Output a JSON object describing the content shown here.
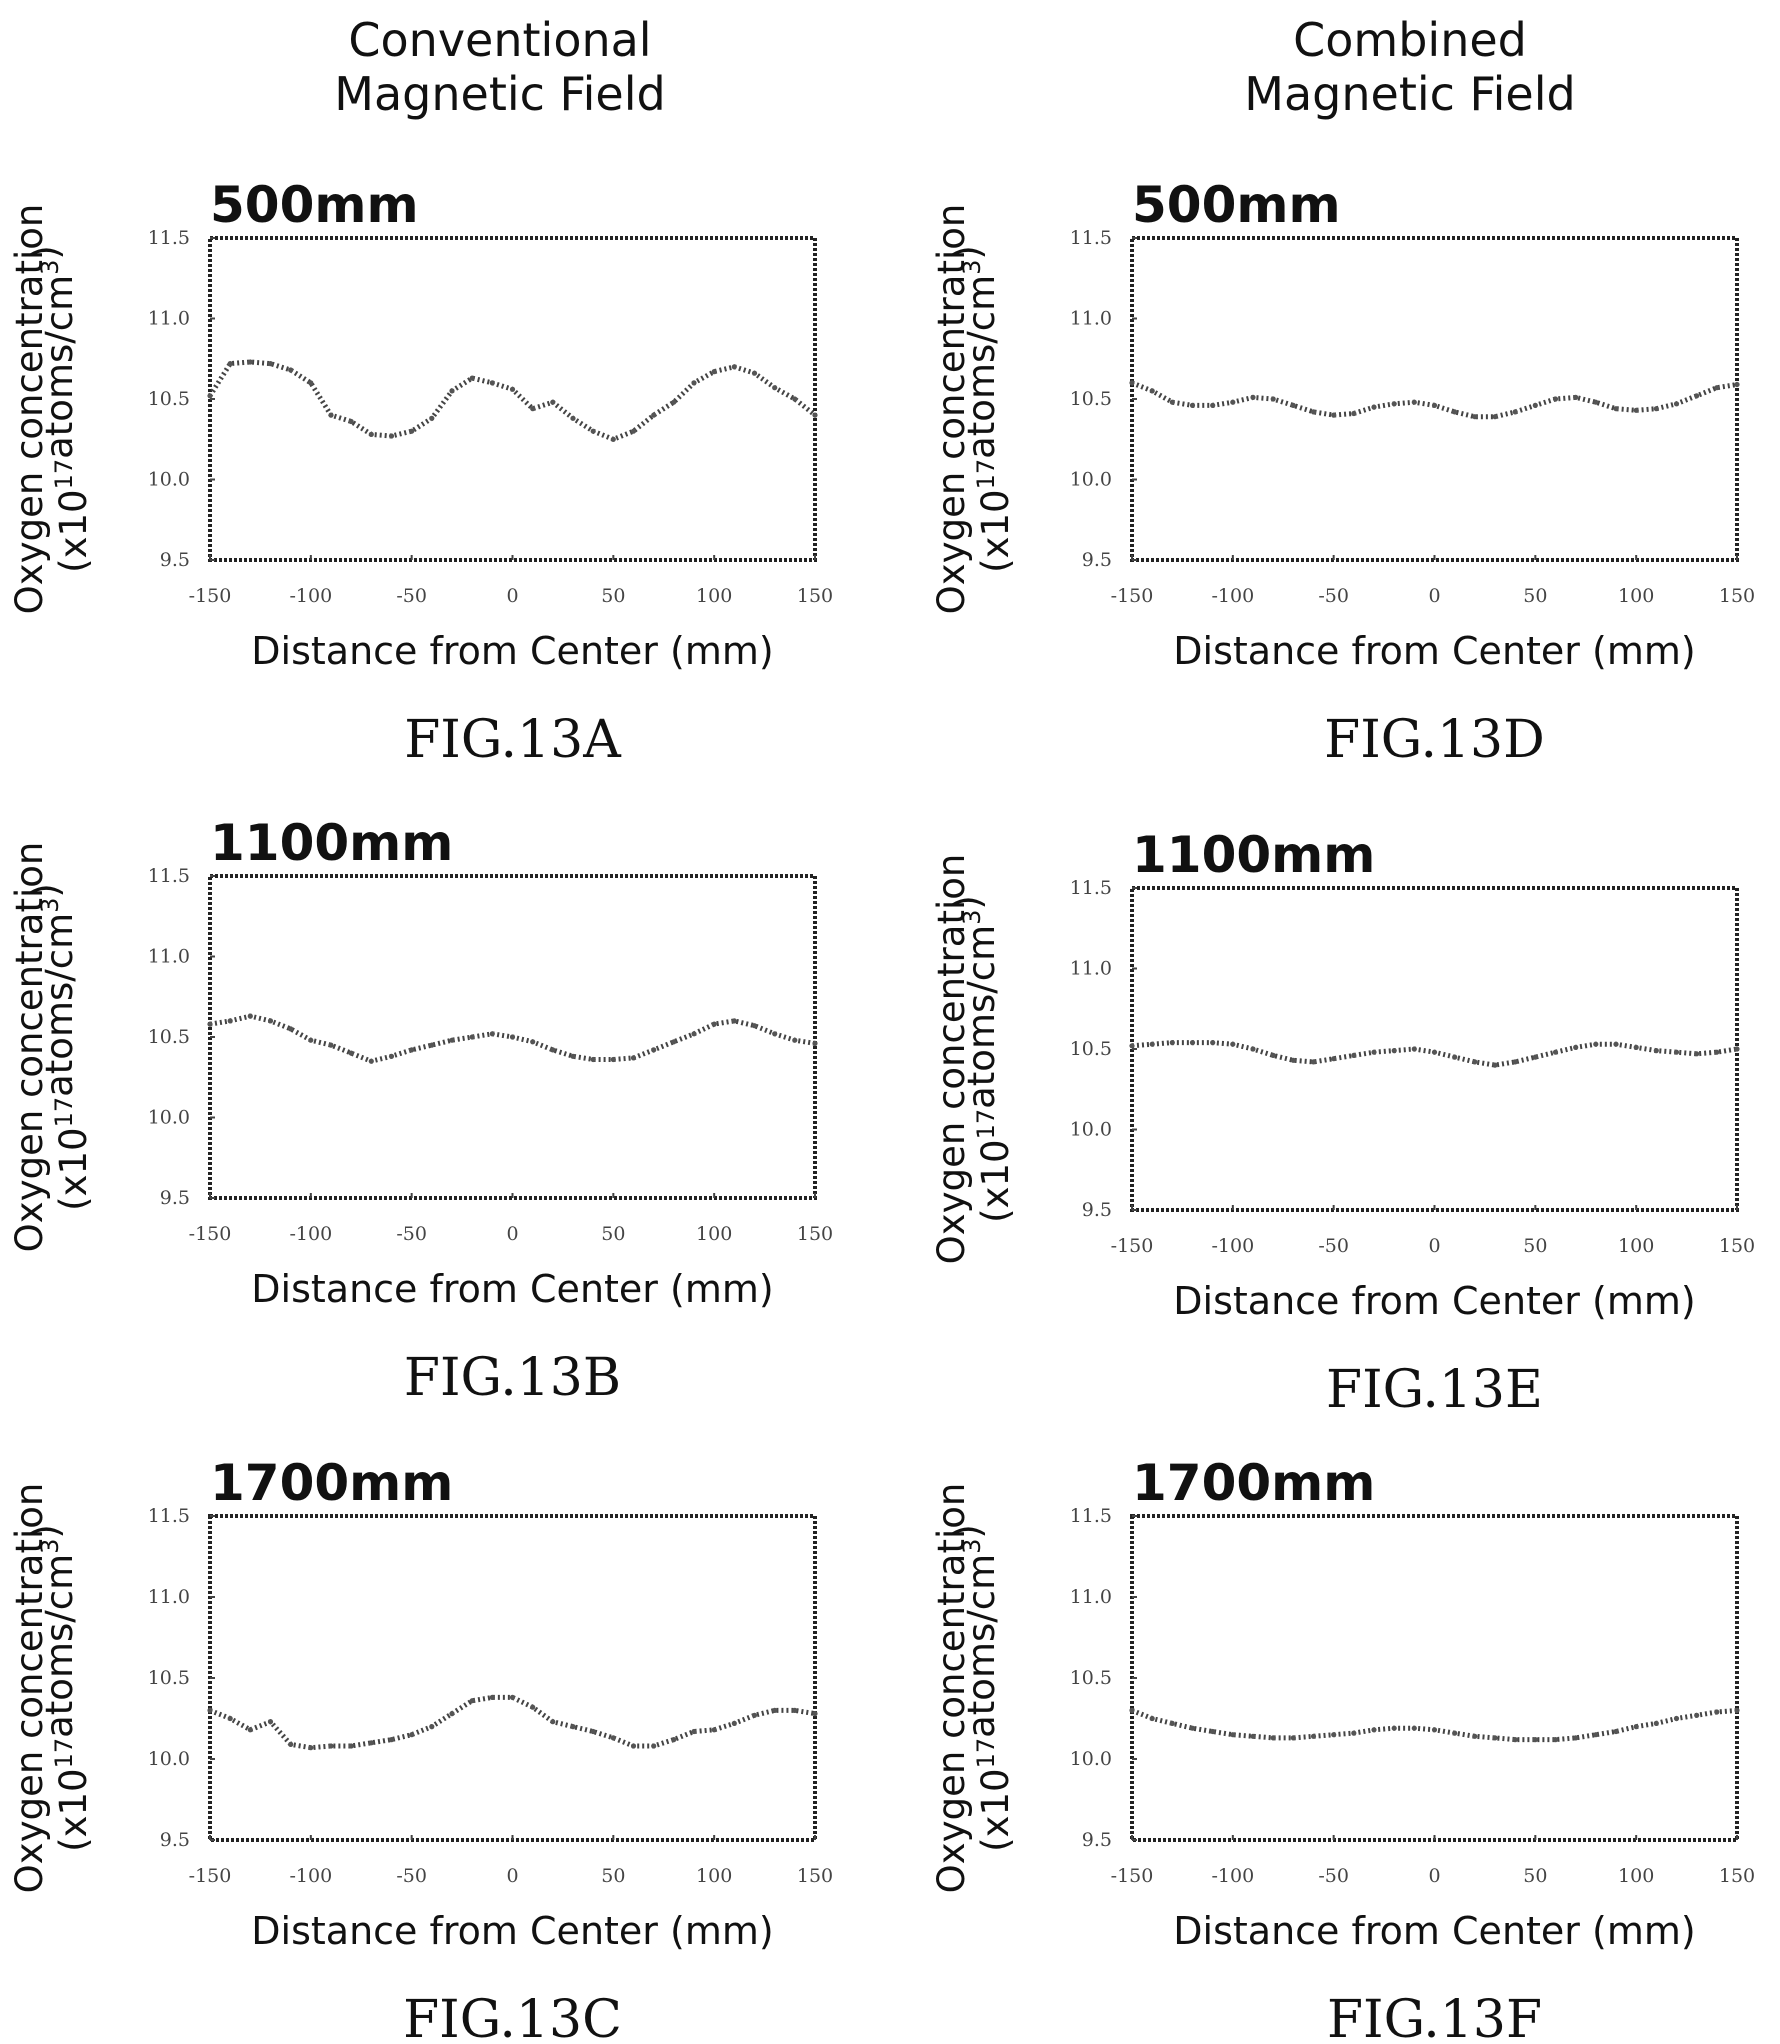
{
  "column_headers": [
    {
      "line1": "Conventional",
      "line2": "Magnetic Field"
    },
    {
      "line1": "Combined",
      "line2": "Magnetic Field"
    }
  ],
  "chart_data": [
    {
      "type": "line",
      "figure": "FIG.13A",
      "title": "500mm",
      "xlabel": "Distance from Center (mm)",
      "ylabel_line1": "Oxygen concentration",
      "ylabel_line2_pre": "(x10",
      "ylabel_sup1": "17",
      "ylabel_line2_mid": "atoms/cm",
      "ylabel_sup2": "3",
      "ylabel_line2_post": ")",
      "xlim": [
        -150,
        150
      ],
      "ylim": [
        9.5,
        11.5
      ],
      "xticks": [
        "-150",
        "-100",
        "-50",
        "0",
        "50",
        "100",
        "150"
      ],
      "yticks": [
        "9.5",
        "10.0",
        "10.5",
        "11.0",
        "11.5"
      ],
      "x": [
        -150,
        -140,
        -130,
        -120,
        -110,
        -100,
        -90,
        -80,
        -70,
        -60,
        -50,
        -40,
        -30,
        -20,
        -10,
        0,
        10,
        20,
        30,
        40,
        50,
        60,
        70,
        80,
        90,
        100,
        110,
        120,
        130,
        140,
        150
      ],
      "y": [
        10.52,
        10.72,
        10.73,
        10.72,
        10.68,
        10.6,
        10.4,
        10.36,
        10.28,
        10.27,
        10.3,
        10.38,
        10.55,
        10.63,
        10.6,
        10.56,
        10.44,
        10.48,
        10.38,
        10.3,
        10.25,
        10.3,
        10.4,
        10.48,
        10.6,
        10.67,
        10.7,
        10.66,
        10.57,
        10.5,
        10.4
      ]
    },
    {
      "type": "line",
      "figure": "FIG.13B",
      "title": "1100mm",
      "xlabel": "Distance from Center (mm)",
      "ylabel_line1": "Oxygen concentration",
      "ylabel_line2_pre": "(x10",
      "ylabel_sup1": "17",
      "ylabel_line2_mid": "atoms/cm",
      "ylabel_sup2": "3",
      "ylabel_line2_post": ")",
      "xlim": [
        -150,
        150
      ],
      "ylim": [
        9.5,
        11.5
      ],
      "xticks": [
        "-150",
        "-100",
        "-50",
        "0",
        "50",
        "100",
        "150"
      ],
      "yticks": [
        "9.5",
        "10.0",
        "10.5",
        "11.0",
        "11.5"
      ],
      "x": [
        -150,
        -140,
        -130,
        -120,
        -110,
        -100,
        -90,
        -80,
        -70,
        -60,
        -50,
        -40,
        -30,
        -20,
        -10,
        0,
        10,
        20,
        30,
        40,
        50,
        60,
        70,
        80,
        90,
        100,
        110,
        120,
        130,
        140,
        150
      ],
      "y": [
        10.58,
        10.6,
        10.63,
        10.6,
        10.55,
        10.48,
        10.45,
        10.4,
        10.35,
        10.38,
        10.42,
        10.45,
        10.48,
        10.5,
        10.52,
        10.5,
        10.47,
        10.42,
        10.38,
        10.36,
        10.36,
        10.37,
        10.42,
        10.47,
        10.52,
        10.58,
        10.6,
        10.57,
        10.52,
        10.48,
        10.46
      ]
    },
    {
      "type": "line",
      "figure": "FIG.13C",
      "title": "1700mm",
      "xlabel": "Distance from Center (mm)",
      "ylabel_line1": "Oxygen concentration",
      "ylabel_line2_pre": "(x10",
      "ylabel_sup1": "17",
      "ylabel_line2_mid": "atoms/cm",
      "ylabel_sup2": "3",
      "ylabel_line2_post": ")",
      "xlim": [
        -150,
        150
      ],
      "ylim": [
        9.5,
        11.5
      ],
      "xticks": [
        "-150",
        "-100",
        "-50",
        "0",
        "50",
        "100",
        "150"
      ],
      "yticks": [
        "9.5",
        "10.0",
        "10.5",
        "11.0",
        "11.5"
      ],
      "x": [
        -150,
        -140,
        -130,
        -120,
        -110,
        -100,
        -90,
        -80,
        -70,
        -60,
        -50,
        -40,
        -30,
        -20,
        -10,
        0,
        10,
        20,
        30,
        40,
        50,
        60,
        70,
        80,
        90,
        100,
        110,
        120,
        130,
        140,
        150
      ],
      "y": [
        10.3,
        10.25,
        10.18,
        10.23,
        10.09,
        10.07,
        10.08,
        10.08,
        10.1,
        10.12,
        10.15,
        10.2,
        10.28,
        10.36,
        10.38,
        10.38,
        10.32,
        10.23,
        10.2,
        10.17,
        10.13,
        10.08,
        10.08,
        10.12,
        10.17,
        10.18,
        10.22,
        10.27,
        10.3,
        10.3,
        10.28
      ]
    },
    {
      "type": "line",
      "figure": "FIG.13D",
      "title": "500mm",
      "xlabel": "Distance from Center (mm)",
      "ylabel_line1": "Oxygen concentration",
      "ylabel_line2_pre": "(x10",
      "ylabel_sup1": "17",
      "ylabel_line2_mid": "atoms/cm",
      "ylabel_sup2": "3",
      "ylabel_line2_post": ")",
      "xlim": [
        -150,
        150
      ],
      "ylim": [
        9.5,
        11.5
      ],
      "xticks": [
        "-150",
        "-100",
        "-50",
        "0",
        "50",
        "100",
        "150"
      ],
      "yticks": [
        "9.5",
        "10.0",
        "10.5",
        "11.0",
        "11.5"
      ],
      "x": [
        -150,
        -140,
        -130,
        -120,
        -110,
        -100,
        -90,
        -80,
        -70,
        -60,
        -50,
        -40,
        -30,
        -20,
        -10,
        0,
        10,
        20,
        30,
        40,
        50,
        60,
        70,
        80,
        90,
        100,
        110,
        120,
        130,
        140,
        150
      ],
      "y": [
        10.6,
        10.55,
        10.48,
        10.46,
        10.46,
        10.48,
        10.51,
        10.5,
        10.46,
        10.42,
        10.4,
        10.41,
        10.45,
        10.47,
        10.48,
        10.46,
        10.42,
        10.39,
        10.39,
        10.42,
        10.46,
        10.5,
        10.51,
        10.48,
        10.44,
        10.43,
        10.44,
        10.47,
        10.52,
        10.57,
        10.59
      ]
    },
    {
      "type": "line",
      "figure": "FIG.13E",
      "title": "1100mm",
      "xlabel": "Distance from Center (mm)",
      "ylabel_line1": "Oxygen concentration",
      "ylabel_line2_pre": "(x10",
      "ylabel_sup1": "17",
      "ylabel_line2_mid": "atoms/cm",
      "ylabel_sup2": "3",
      "ylabel_line2_post": ")",
      "xlim": [
        -150,
        150
      ],
      "ylim": [
        9.5,
        11.5
      ],
      "xticks": [
        "-150",
        "-100",
        "-50",
        "0",
        "50",
        "100",
        "150"
      ],
      "yticks": [
        "9.5",
        "10.0",
        "10.5",
        "11.0",
        "11.5"
      ],
      "x": [
        -150,
        -140,
        -130,
        -120,
        -110,
        -100,
        -90,
        -80,
        -70,
        -60,
        -50,
        -40,
        -30,
        -20,
        -10,
        0,
        10,
        20,
        30,
        40,
        50,
        60,
        70,
        80,
        90,
        100,
        110,
        120,
        130,
        140,
        150
      ],
      "y": [
        10.52,
        10.53,
        10.54,
        10.54,
        10.54,
        10.53,
        10.5,
        10.46,
        10.43,
        10.42,
        10.44,
        10.46,
        10.48,
        10.49,
        10.5,
        10.48,
        10.45,
        10.42,
        10.4,
        10.42,
        10.45,
        10.48,
        10.51,
        10.53,
        10.53,
        10.51,
        10.49,
        10.48,
        10.47,
        10.48,
        10.5
      ]
    },
    {
      "type": "line",
      "figure": "FIG.13F",
      "title": "1700mm",
      "xlabel": "Distance from Center (mm)",
      "ylabel_line1": "Oxygen concentration",
      "ylabel_line2_pre": "(x10",
      "ylabel_sup1": "17",
      "ylabel_line2_mid": "atoms/cm",
      "ylabel_sup2": "3",
      "ylabel_line2_post": ")",
      "xlim": [
        -150,
        150
      ],
      "ylim": [
        9.5,
        11.5
      ],
      "xticks": [
        "-150",
        "-100",
        "-50",
        "0",
        "50",
        "100",
        "150"
      ],
      "yticks": [
        "9.5",
        "10.0",
        "10.5",
        "11.0",
        "11.5"
      ],
      "x": [
        -150,
        -140,
        -130,
        -120,
        -110,
        -100,
        -90,
        -80,
        -70,
        -60,
        -50,
        -40,
        -30,
        -20,
        -10,
        0,
        10,
        20,
        30,
        40,
        50,
        60,
        70,
        80,
        90,
        100,
        110,
        120,
        130,
        140,
        150
      ],
      "y": [
        10.3,
        10.25,
        10.22,
        10.19,
        10.17,
        10.15,
        10.14,
        10.13,
        10.13,
        10.14,
        10.15,
        10.16,
        10.18,
        10.19,
        10.19,
        10.18,
        10.16,
        10.14,
        10.13,
        10.12,
        10.12,
        10.12,
        10.13,
        10.15,
        10.17,
        10.2,
        10.22,
        10.25,
        10.27,
        10.29,
        10.3
      ]
    }
  ]
}
